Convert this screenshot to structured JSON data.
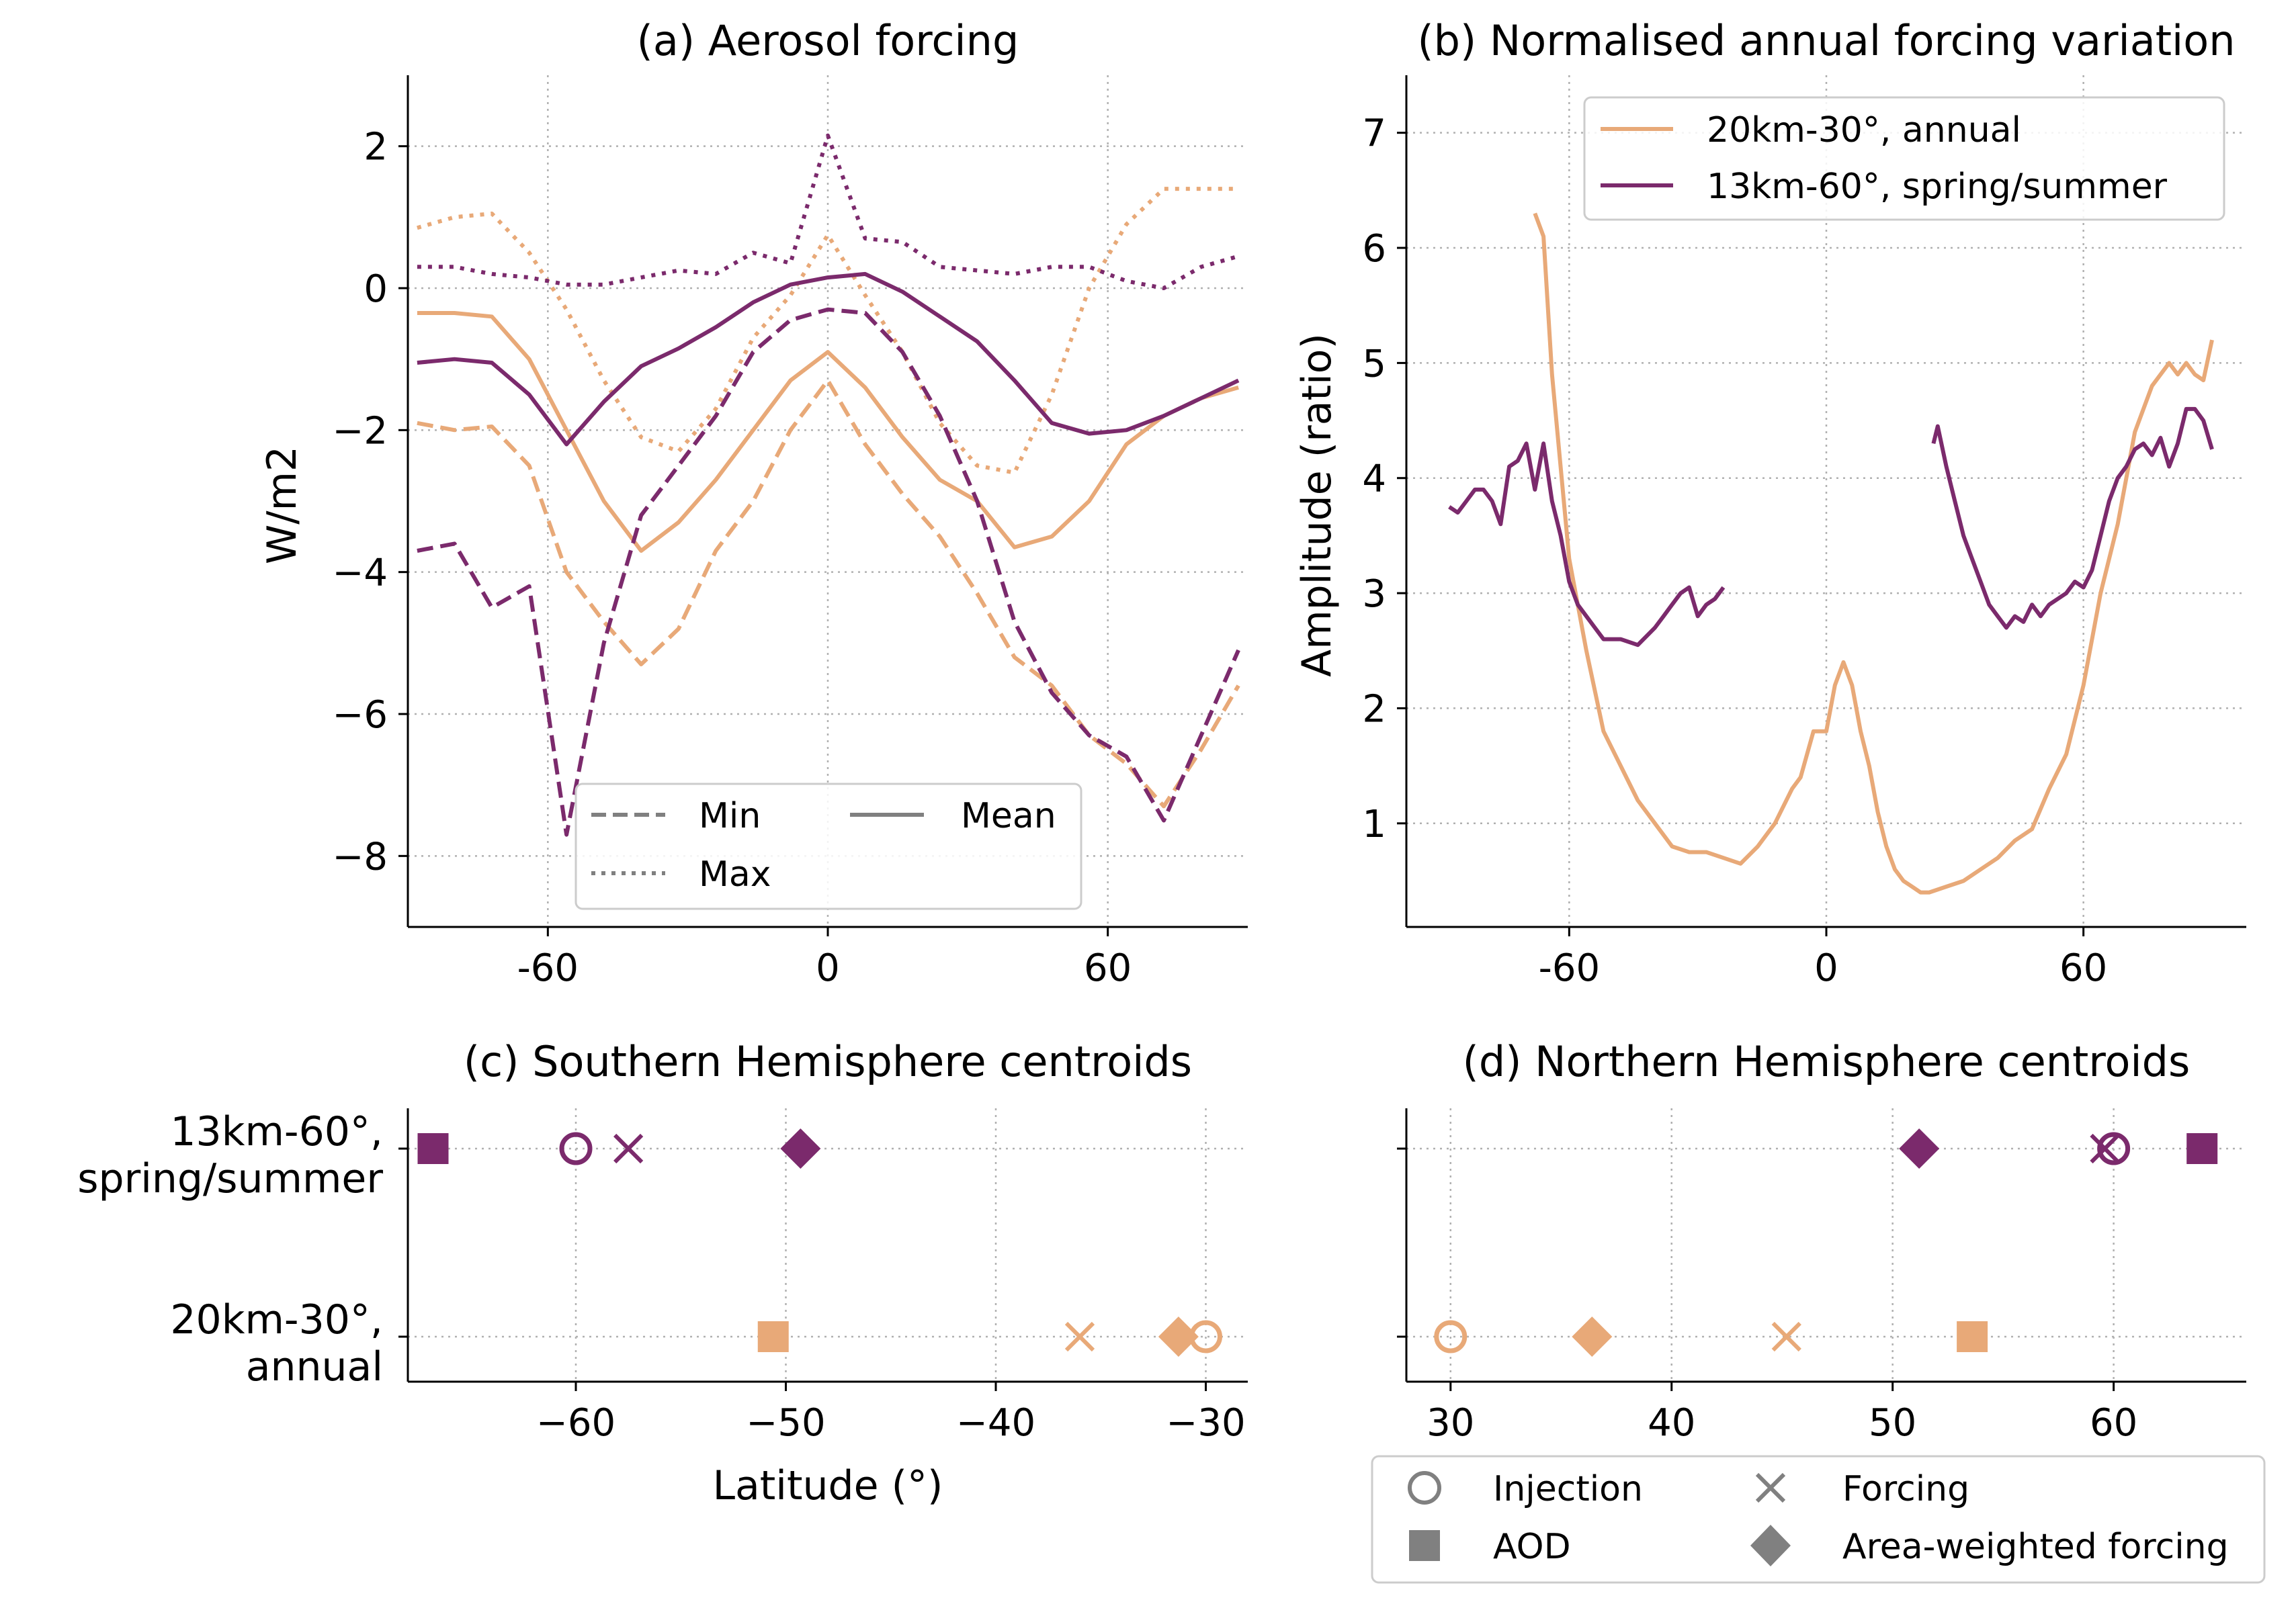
{
  "colors": {
    "series_30": "#e8a978",
    "series_60": "#7b2a6c",
    "legend_neutral": "#808080",
    "grid": "#b0b0b0"
  },
  "chart_data": [
    {
      "panel": "a",
      "type": "line",
      "title": "(a) Aerosol forcing",
      "xlabel": "",
      "ylabel": "W/m2",
      "xlim": [
        -90,
        90
      ],
      "ylim": [
        -9,
        3
      ],
      "xticks": [
        "-60",
        "0",
        "60"
      ],
      "xtick_values": [
        -60,
        0,
        60
      ],
      "yticks": [
        "2",
        "0",
        "−2",
        "−4",
        "−6",
        "−8"
      ],
      "ytick_values": [
        2,
        0,
        -2,
        -4,
        -6,
        -8
      ],
      "grid": true,
      "legend": {
        "placement": "lower-center",
        "entries": [
          {
            "label": "Min",
            "style": "dashed"
          },
          {
            "label": "Max",
            "style": "dotted"
          },
          {
            "label": "Mean",
            "style": "solid"
          }
        ]
      },
      "x": [
        -88,
        -80,
        -72,
        -64,
        -56,
        -48,
        -40,
        -32,
        -24,
        -16,
        -8,
        0,
        8,
        16,
        24,
        32,
        40,
        48,
        56,
        64,
        72,
        80,
        88
      ],
      "series": [
        {
          "color": "series_30",
          "style": "solid",
          "values": [
            -0.35,
            -0.35,
            -0.4,
            -1.0,
            -2.0,
            -3.0,
            -3.7,
            -3.3,
            -2.7,
            -2.0,
            -1.3,
            -0.9,
            -1.4,
            -2.1,
            -2.7,
            -3.0,
            -3.65,
            -3.5,
            -3.0,
            -2.2,
            -1.8,
            -1.55,
            -1.4
          ]
        },
        {
          "color": "series_30",
          "style": "dashed",
          "values": [
            -1.9,
            -2.0,
            -1.95,
            -2.5,
            -4.0,
            -4.7,
            -5.3,
            -4.8,
            -3.7,
            -3.0,
            -2.0,
            -1.3,
            -2.2,
            -2.9,
            -3.5,
            -4.3,
            -5.2,
            -5.6,
            -6.3,
            -6.7,
            -7.3,
            -6.5,
            -5.6
          ]
        },
        {
          "color": "series_30",
          "style": "dotted",
          "values": [
            0.85,
            1.0,
            1.05,
            0.5,
            -0.3,
            -1.3,
            -2.1,
            -2.3,
            -1.7,
            -0.7,
            -0.1,
            0.75,
            -0.1,
            -0.9,
            -1.9,
            -2.5,
            -2.6,
            -1.5,
            0.0,
            0.9,
            1.4,
            1.4,
            1.4
          ]
        },
        {
          "color": "series_60",
          "style": "solid",
          "values": [
            -1.05,
            -1.0,
            -1.05,
            -1.5,
            -2.2,
            -1.6,
            -1.1,
            -0.85,
            -0.55,
            -0.2,
            0.05,
            0.15,
            0.2,
            -0.05,
            -0.4,
            -0.75,
            -1.3,
            -1.9,
            -2.05,
            -2.0,
            -1.8,
            -1.55,
            -1.3
          ]
        },
        {
          "color": "series_60",
          "style": "dashed",
          "values": [
            -3.7,
            -3.6,
            -4.5,
            -4.2,
            -7.7,
            -5.0,
            -3.2,
            -2.5,
            -1.8,
            -0.9,
            -0.45,
            -0.3,
            -0.35,
            -0.9,
            -1.8,
            -3.0,
            -4.7,
            -5.7,
            -6.3,
            -6.6,
            -7.5,
            -6.3,
            -5.1
          ]
        },
        {
          "color": "series_60",
          "style": "dotted",
          "values": [
            0.3,
            0.3,
            0.2,
            0.15,
            0.05,
            0.05,
            0.15,
            0.25,
            0.2,
            0.5,
            0.35,
            2.15,
            0.7,
            0.65,
            0.3,
            0.25,
            0.2,
            0.3,
            0.3,
            0.1,
            0.0,
            0.3,
            0.45
          ]
        }
      ]
    },
    {
      "panel": "b",
      "type": "line",
      "title": "(b) Normalised annual forcing variation",
      "xlabel": "",
      "ylabel": "Amplitude (ratio)",
      "xlim": [
        -98,
        98
      ],
      "ylim": [
        0.1,
        7.5
      ],
      "xticks": [
        "-60",
        "0",
        "60"
      ],
      "xtick_values": [
        -60,
        0,
        60
      ],
      "yticks": [
        "7",
        "6",
        "5",
        "4",
        "3",
        "2",
        "1"
      ],
      "ytick_values": [
        7,
        6,
        5,
        4,
        3,
        2,
        1
      ],
      "grid": true,
      "legend": {
        "placement": "top-right",
        "entries": [
          {
            "label": "20km-30°, annual",
            "color": "series_30"
          },
          {
            "label": "13km-60°, spring/summer",
            "color": "series_60"
          }
        ]
      },
      "series": [
        {
          "name": "20km-30°, annual",
          "color": "series_30",
          "x": [
            -68,
            -66,
            -64,
            -60,
            -56,
            -52,
            -48,
            -44,
            -40,
            -36,
            -32,
            -28,
            -24,
            -20,
            -16,
            -12,
            -8,
            -6,
            -3,
            0,
            2,
            4,
            6,
            8,
            10,
            12,
            14,
            16,
            18,
            20,
            22,
            24,
            28,
            32,
            36,
            40,
            44,
            48,
            52,
            56,
            60,
            64,
            68,
            72,
            76,
            80,
            82,
            84,
            86,
            88,
            90
          ],
          "values": [
            6.3,
            6.1,
            4.9,
            3.3,
            2.5,
            1.8,
            1.5,
            1.2,
            1.0,
            0.8,
            0.75,
            0.75,
            0.7,
            0.65,
            0.8,
            1.0,
            1.3,
            1.4,
            1.8,
            1.8,
            2.2,
            2.4,
            2.2,
            1.8,
            1.5,
            1.1,
            0.8,
            0.6,
            0.5,
            0.45,
            0.4,
            0.4,
            0.45,
            0.5,
            0.6,
            0.7,
            0.85,
            0.95,
            1.3,
            1.6,
            2.2,
            3.0,
            3.6,
            4.4,
            4.8,
            5.0,
            4.9,
            5.0,
            4.9,
            4.85,
            5.2
          ]
        },
        {
          "name": "13km-60°, spring/summer",
          "color": "series_60",
          "segments": [
            {
              "x": [
                -88,
                -86,
                -84,
                -82,
                -80,
                -78,
                -76,
                -74,
                -72,
                -70,
                -68,
                -66,
                -64,
                -62,
                -60,
                -58,
                -56,
                -54,
                -52,
                -48,
                -44,
                -40,
                -38,
                -36,
                -34,
                -32,
                -30,
                -28,
                -26,
                -24
              ],
              "values": [
                3.75,
                3.7,
                3.8,
                3.9,
                3.9,
                3.8,
                3.6,
                4.1,
                4.15,
                4.3,
                3.9,
                4.3,
                3.8,
                3.5,
                3.1,
                2.9,
                2.8,
                2.7,
                2.6,
                2.6,
                2.55,
                2.7,
                2.8,
                2.9,
                3.0,
                3.05,
                2.8,
                2.9,
                2.95,
                3.05
              ]
            },
            {
              "x": [
                25,
                26,
                28,
                30,
                32,
                34,
                36,
                38,
                40,
                42,
                44,
                46,
                48,
                50,
                52,
                54,
                56,
                58,
                60,
                62,
                64,
                66,
                68,
                70,
                72,
                74,
                76,
                78,
                80,
                82,
                84,
                86,
                88,
                90
              ],
              "values": [
                4.3,
                4.45,
                4.1,
                3.8,
                3.5,
                3.3,
                3.1,
                2.9,
                2.8,
                2.7,
                2.8,
                2.75,
                2.9,
                2.8,
                2.9,
                2.95,
                3.0,
                3.1,
                3.05,
                3.2,
                3.5,
                3.8,
                4.0,
                4.1,
                4.25,
                4.3,
                4.2,
                4.35,
                4.1,
                4.3,
                4.6,
                4.6,
                4.5,
                4.25
              ]
            }
          ]
        }
      ]
    },
    {
      "panel": "c",
      "type": "scatter",
      "title": "(c) Southern Hemisphere centroids",
      "xlabel": "Latitude (°)",
      "ylabel": "",
      "xlim": [
        -68,
        -28
      ],
      "xticks": [
        "−60",
        "−50",
        "−40",
        "−30"
      ],
      "xtick_values": [
        -60,
        -50,
        -40,
        -30
      ],
      "categories": [
        "13km-60°,\nspring/summer",
        "20km-30°,\nannual"
      ],
      "grid": true,
      "points": [
        {
          "category": 0,
          "marker": "circle",
          "color": "series_60",
          "x": -60.0
        },
        {
          "category": 0,
          "marker": "cross",
          "color": "series_60",
          "x": -57.5
        },
        {
          "category": 0,
          "marker": "square",
          "color": "series_60",
          "x": -66.8
        },
        {
          "category": 0,
          "marker": "diamond",
          "color": "series_60",
          "x": -49.3
        },
        {
          "category": 1,
          "marker": "circle",
          "color": "series_30",
          "x": -30.0
        },
        {
          "category": 1,
          "marker": "cross",
          "color": "series_30",
          "x": -36.0
        },
        {
          "category": 1,
          "marker": "square",
          "color": "series_30",
          "x": -50.6
        },
        {
          "category": 1,
          "marker": "diamond",
          "color": "series_30",
          "x": -31.3
        }
      ]
    },
    {
      "panel": "d",
      "type": "scatter",
      "title": "(d) Northern Hemisphere centroids",
      "xlabel": "",
      "ylabel": "",
      "xlim": [
        28,
        66
      ],
      "xticks": [
        "30",
        "40",
        "50",
        "60"
      ],
      "xtick_values": [
        30,
        40,
        50,
        60
      ],
      "grid": true,
      "legend": {
        "placement": "below",
        "entries": [
          {
            "label": "Injection",
            "marker": "circle"
          },
          {
            "label": "Forcing",
            "marker": "cross"
          },
          {
            "label": "AOD",
            "marker": "square"
          },
          {
            "label": "Area-weighted forcing",
            "marker": "diamond"
          }
        ]
      },
      "points": [
        {
          "category": 0,
          "marker": "circle",
          "color": "series_60",
          "x": 60.0
        },
        {
          "category": 0,
          "marker": "cross",
          "color": "series_60",
          "x": 59.6
        },
        {
          "category": 0,
          "marker": "square",
          "color": "series_60",
          "x": 64.0
        },
        {
          "category": 0,
          "marker": "diamond",
          "color": "series_60",
          "x": 51.2
        },
        {
          "category": 1,
          "marker": "circle",
          "color": "series_30",
          "x": 30.0
        },
        {
          "category": 1,
          "marker": "cross",
          "color": "series_30",
          "x": 45.2
        },
        {
          "category": 1,
          "marker": "square",
          "color": "series_30",
          "x": 53.6
        },
        {
          "category": 1,
          "marker": "diamond",
          "color": "series_30",
          "x": 36.4
        }
      ]
    }
  ]
}
